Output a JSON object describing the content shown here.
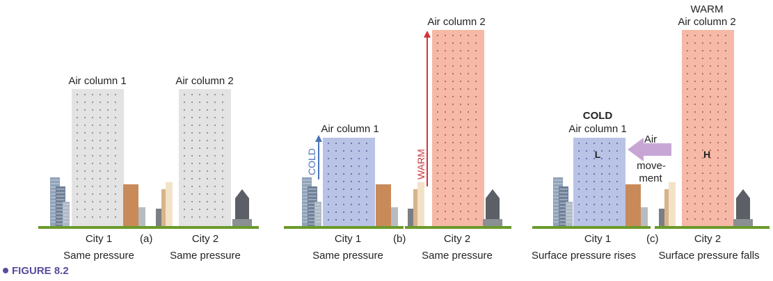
{
  "panels": {
    "a": {
      "tag": "(a)",
      "column1_label": "Air column 1",
      "column2_label": "Air column 2",
      "city1": "City 1",
      "city2": "City 2",
      "city1_pressure": "Same pressure",
      "city2_pressure": "Same pressure"
    },
    "b": {
      "tag": "(b)",
      "column1_label": "Air column 1",
      "column2_label": "Air column 2",
      "cold_label": "COLD",
      "warm_label": "WARM",
      "city1": "City 1",
      "city2": "City 2",
      "city1_pressure": "Same pressure",
      "city2_pressure": "Same pressure"
    },
    "c": {
      "tag": "(c)",
      "cold_title": "COLD",
      "column1_label": "Air column 1",
      "warm_title": "WARM",
      "column2_label": "Air column 2",
      "low_marker": "L",
      "high_marker": "H",
      "air_movement_lines": [
        "Air",
        "move-",
        "ment"
      ],
      "city1": "City 1",
      "city2": "City 2",
      "city1_pressure": "Surface pressure rises",
      "city2_pressure": "Surface pressure falls"
    }
  },
  "figure_caption": "FIGURE 8.2",
  "colors": {
    "neutral_column": "#e3e3e3",
    "cold_column": "#b9c3e6",
    "warm_column": "#f6b9a8",
    "ground": "#6a9a2a",
    "cold_arrow": "#4a74b8",
    "warm_arrow": "#d0343a",
    "air_arrow": "#c7a6d6",
    "caption": "#5a4a9c"
  }
}
